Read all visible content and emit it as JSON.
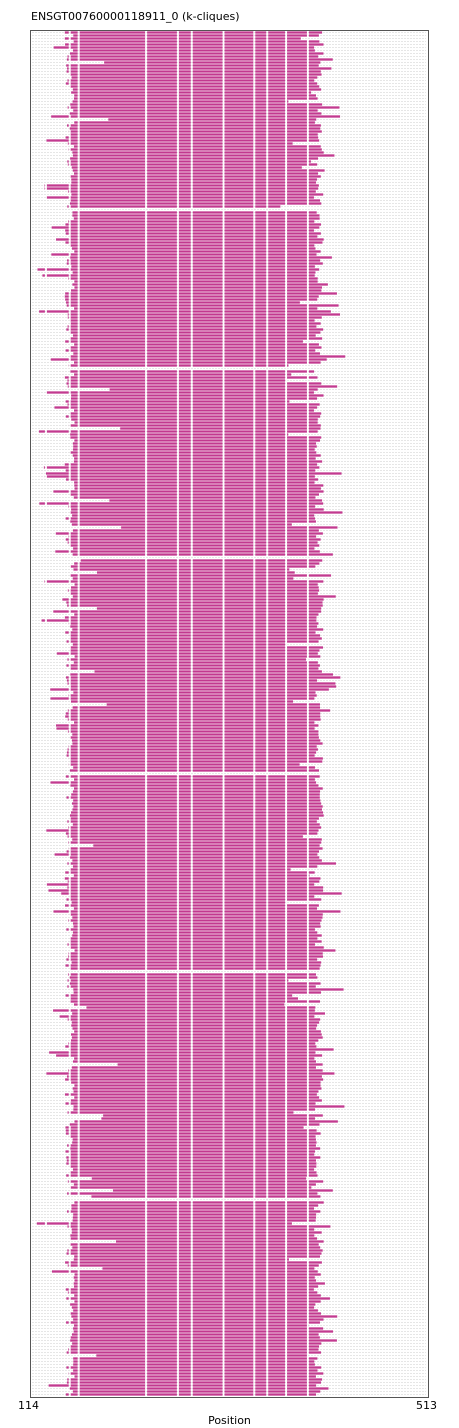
{
  "chart_data": {
    "type": "alignment",
    "title": "ENSGT00760000118911_0 (k-cliques)",
    "xlabel": "Position",
    "xlim": [
      114,
      513
    ],
    "xticks": [
      "114",
      "513"
    ],
    "n_sequences": 455,
    "colors": {
      "aligned": "#c2398f",
      "gap_line": "#cccccc",
      "frame": "#555555"
    },
    "typical_aligned_span": [
      153,
      405
    ],
    "column_gaps": [
      129,
      153,
      162,
      230,
      262,
      276,
      308,
      339,
      352,
      371,
      393
    ],
    "row_gaps": [
      59,
      112,
      175,
      247,
      313,
      389,
      455
    ]
  }
}
